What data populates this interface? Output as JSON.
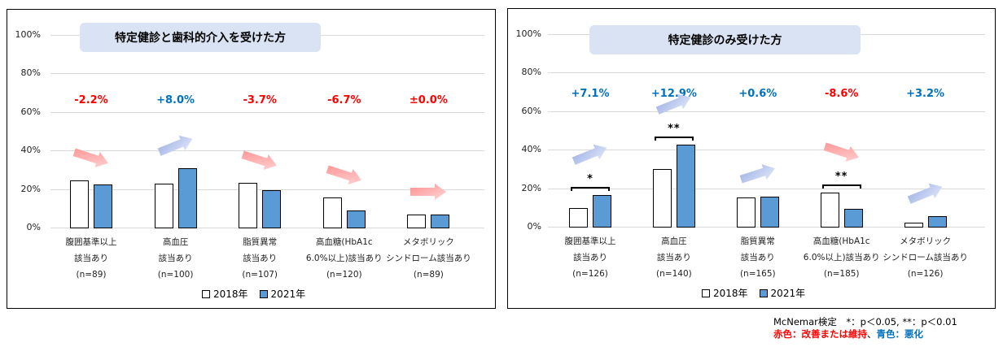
{
  "colors": {
    "improve": "#ff0000",
    "worsen": "#0070c0",
    "bar2018": "#ffffff",
    "bar2021": "#5b9bd5",
    "title_bg": "#dae3f3",
    "arrow_red_from": "#ff8f8f",
    "arrow_red_to": "#ffd6d6",
    "arrow_blue_from": "#9fb2e6",
    "arrow_blue_to": "#e1e8f8"
  },
  "y_ticks": [
    "0%",
    "20%",
    "40%",
    "60%",
    "80%",
    "100%"
  ],
  "legend": {
    "y2018": "2018年",
    "y2021": "2021年"
  },
  "footnote": {
    "test": "McNemar検定　*：p＜0.05, **：p＜0.01",
    "red_label": "赤色：改善または維持",
    "sep": "、",
    "blue_label": "青色：悪化"
  },
  "chart_data": [
    {
      "type": "bar",
      "title": "特定健診と歯科的介入を受けた方",
      "ylabel": "",
      "xlabel": "",
      "ylim": [
        0,
        100
      ],
      "y_unit": "%",
      "grid": true,
      "legend_position": "bottom",
      "categories": [
        {
          "line1": "腹囲基準以上",
          "line2": "該当あり",
          "n": "(n=89)"
        },
        {
          "line1": "高血圧",
          "line2": "該当あり",
          "n": "(n=100)"
        },
        {
          "line1": "脂質異常",
          "line2": "該当あり",
          "n": "(n=107)"
        },
        {
          "line1": "高血糖(HbA1c",
          "line2": "6.0%以上)該当あり",
          "n": "(n=120)"
        },
        {
          "line1": "メタボリック",
          "line2": "シンドローム該当あり",
          "n": "(n=89)"
        }
      ],
      "series": [
        {
          "name": "2018年",
          "values": [
            24.5,
            22.8,
            23.2,
            15.6,
            6.7
          ]
        },
        {
          "name": "2021年",
          "values": [
            22.3,
            30.8,
            19.5,
            8.9,
            6.7
          ]
        }
      ],
      "changes": [
        {
          "text": "-2.2%",
          "tone": "improve",
          "arrow": "down"
        },
        {
          "text": "+8.0%",
          "tone": "worsen",
          "arrow": "up"
        },
        {
          "text": "-3.7%",
          "tone": "improve",
          "arrow": "down"
        },
        {
          "text": "-6.7%",
          "tone": "improve",
          "arrow": "down"
        },
        {
          "text": "±0.0%",
          "tone": "improve",
          "arrow": "flat"
        }
      ],
      "significance": []
    },
    {
      "type": "bar",
      "title": "特定健診のみ受けた方",
      "ylabel": "",
      "xlabel": "",
      "ylim": [
        0,
        100
      ],
      "y_unit": "%",
      "grid": true,
      "legend_position": "bottom",
      "categories": [
        {
          "line1": "腹囲基準以上",
          "line2": "該当あり",
          "n": "(n=126)"
        },
        {
          "line1": "高血圧",
          "line2": "該当あり",
          "n": "(n=140)"
        },
        {
          "line1": "脂質異常",
          "line2": "該当あり",
          "n": "(n=165)"
        },
        {
          "line1": "高血糖(HbA1c",
          "line2": "6.0%以上)該当あり",
          "n": "(n=185)"
        },
        {
          "line1": "メタボリック",
          "line2": "シンドローム該当あり",
          "n": "(n=126)"
        }
      ],
      "series": [
        {
          "name": "2018年",
          "values": [
            9.5,
            29.9,
            15.1,
            17.8,
            2.2
          ]
        },
        {
          "name": "2021年",
          "values": [
            16.6,
            42.8,
            15.7,
            9.2,
            5.4
          ]
        }
      ],
      "changes": [
        {
          "text": "+7.1%",
          "tone": "worsen",
          "arrow": "up"
        },
        {
          "text": "+12.9%",
          "tone": "worsen",
          "arrow": "up"
        },
        {
          "text": "+0.6%",
          "tone": "worsen",
          "arrow": "up-slight"
        },
        {
          "text": "-8.6%",
          "tone": "improve",
          "arrow": "down"
        },
        {
          "text": "+3.2%",
          "tone": "worsen",
          "arrow": "up"
        }
      ],
      "significance": [
        {
          "index": 0,
          "mark": "*"
        },
        {
          "index": 1,
          "mark": "**"
        },
        {
          "index": 3,
          "mark": "**"
        }
      ]
    }
  ]
}
